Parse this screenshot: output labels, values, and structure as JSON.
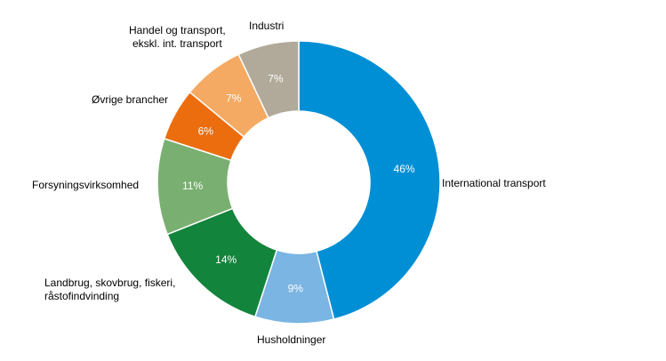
{
  "chart_data": {
    "type": "pie",
    "subtype": "donut",
    "start": "top",
    "direction": "clockwise",
    "slices": [
      {
        "label": "International transport",
        "value": 46,
        "value_label": "46%",
        "color": "#008fd5"
      },
      {
        "label": "Husholdninger",
        "value": 9,
        "value_label": "9%",
        "color": "#7ab5e3"
      },
      {
        "label": "Landbrug, skovbrug, fiskeri, råstofindvinding",
        "label_lines": [
          "Landbrug, skovbrug, fiskeri,",
          "råstofindvinding"
        ],
        "value": 14,
        "value_label": "14%",
        "color": "#13843b"
      },
      {
        "label": "Forsyningsvirksomhed",
        "value": 11,
        "value_label": "11%",
        "color": "#7aaf72"
      },
      {
        "label": "Øvrige brancher",
        "value": 6,
        "value_label": "6%",
        "color": "#ec6d0d"
      },
      {
        "label": "Handel og transport, ekskl. int. transport",
        "label_lines": [
          "Handel og transport,",
          "ekskl. int. transport"
        ],
        "value": 7,
        "value_label": "7%",
        "color": "#f5aa63"
      },
      {
        "label": "Industri",
        "value": 7,
        "value_label": "7%",
        "color": "#b1aa9a"
      }
    ]
  }
}
